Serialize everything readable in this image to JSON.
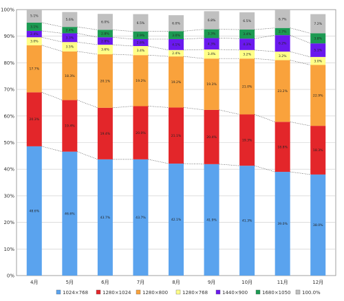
{
  "chart_data": {
    "type": "bar",
    "stacked": true,
    "categories": [
      "4月",
      "5月",
      "6月",
      "7月",
      "8月",
      "9月",
      "10月",
      "11月",
      "12月"
    ],
    "ylim": [
      0,
      100
    ],
    "yticks": [
      "0%",
      "10%",
      "20%",
      "30%",
      "40%",
      "50%",
      "60%",
      "70%",
      "80%",
      "90%",
      "100%"
    ],
    "grid": true,
    "legend_position": "bottom",
    "series": [
      {
        "name": "1024×768",
        "color": "#5aa3ee",
        "values": [
          48.6,
          46.6,
          43.7,
          43.7,
          42.1,
          41.9,
          41.3,
          39.0,
          38.0
        ],
        "labels": [
          "48.6%",
          "46.6%",
          "43.7%",
          "43.7%",
          "42.1%",
          "41.9%",
          "41.3%",
          "39.0%",
          "38.0%"
        ]
      },
      {
        "name": "1280×1024",
        "color": "#e3262a",
        "values": [
          20.3,
          19.4,
          19.4,
          20.0,
          21.1,
          20.4,
          19.3,
          18.8,
          18.3
        ],
        "labels": [
          "20.3%",
          "19.4%",
          "19.4%",
          "20.0%",
          "21.1%",
          "20.4%",
          "19.3%",
          "18.8%",
          "18.3%"
        ]
      },
      {
        "name": "1280×800",
        "color": "#f9a23c",
        "values": [
          17.7,
          18.3,
          20.1,
          19.2,
          19.2,
          19.3,
          21.0,
          23.2,
          22.9
        ],
        "labels": [
          "17.7%",
          "18.3%",
          "20.1%",
          "19.2%",
          "19.2%",
          "19.3%",
          "21.0%",
          "23.2%",
          "22.9%"
        ]
      },
      {
        "name": "1280×768",
        "color": "#ffff88",
        "values": [
          3.0,
          3.5,
          3.6,
          3.4,
          2.4,
          3.4,
          3.2,
          3.2,
          3.0
        ],
        "labels": [
          "3.0%",
          "3.5%",
          "3.6%",
          "3.4%",
          "2.4%",
          "3.4%",
          "3.2%",
          "3.2%",
          "3.0%"
        ]
      },
      {
        "name": "1440×900",
        "color": "#6a19ee",
        "values": [
          2.4,
          3.3,
          2.8,
          2.6,
          4.1,
          4.3,
          4.3,
          6.2,
          5.1
        ],
        "labels": [
          "2.4%",
          "3.3%",
          "2.8%",
          "2.6%",
          "4.1%",
          "4.3%",
          "4.3%",
          "6.2%",
          "5.1%"
        ]
      },
      {
        "name": "1680×1050",
        "color": "#1c9a52",
        "values": [
          3.1,
          2.4,
          2.8,
          2.9,
          3.0,
          3.3,
          3.4,
          2.7,
          3.8
        ],
        "labels": [
          "3.1%",
          "2.4%",
          "2.8%",
          "2.9%",
          "3.0%",
          "3.3%",
          "3.4%",
          "2.7%",
          "3.8%"
        ]
      },
      {
        "name": "100.0%",
        "color": "#c0c0c0",
        "values": [
          5.1,
          5.6,
          6.0,
          6.5,
          6.0,
          6.8,
          6.5,
          6.7,
          7.2
        ],
        "labels": [
          "5.1%",
          "5.6%",
          "6.0%",
          "6.5%",
          "6.0%",
          "6.8%",
          "6.5%",
          "6.7%",
          "7.2%"
        ]
      }
    ],
    "connector_lines": "dotted"
  }
}
